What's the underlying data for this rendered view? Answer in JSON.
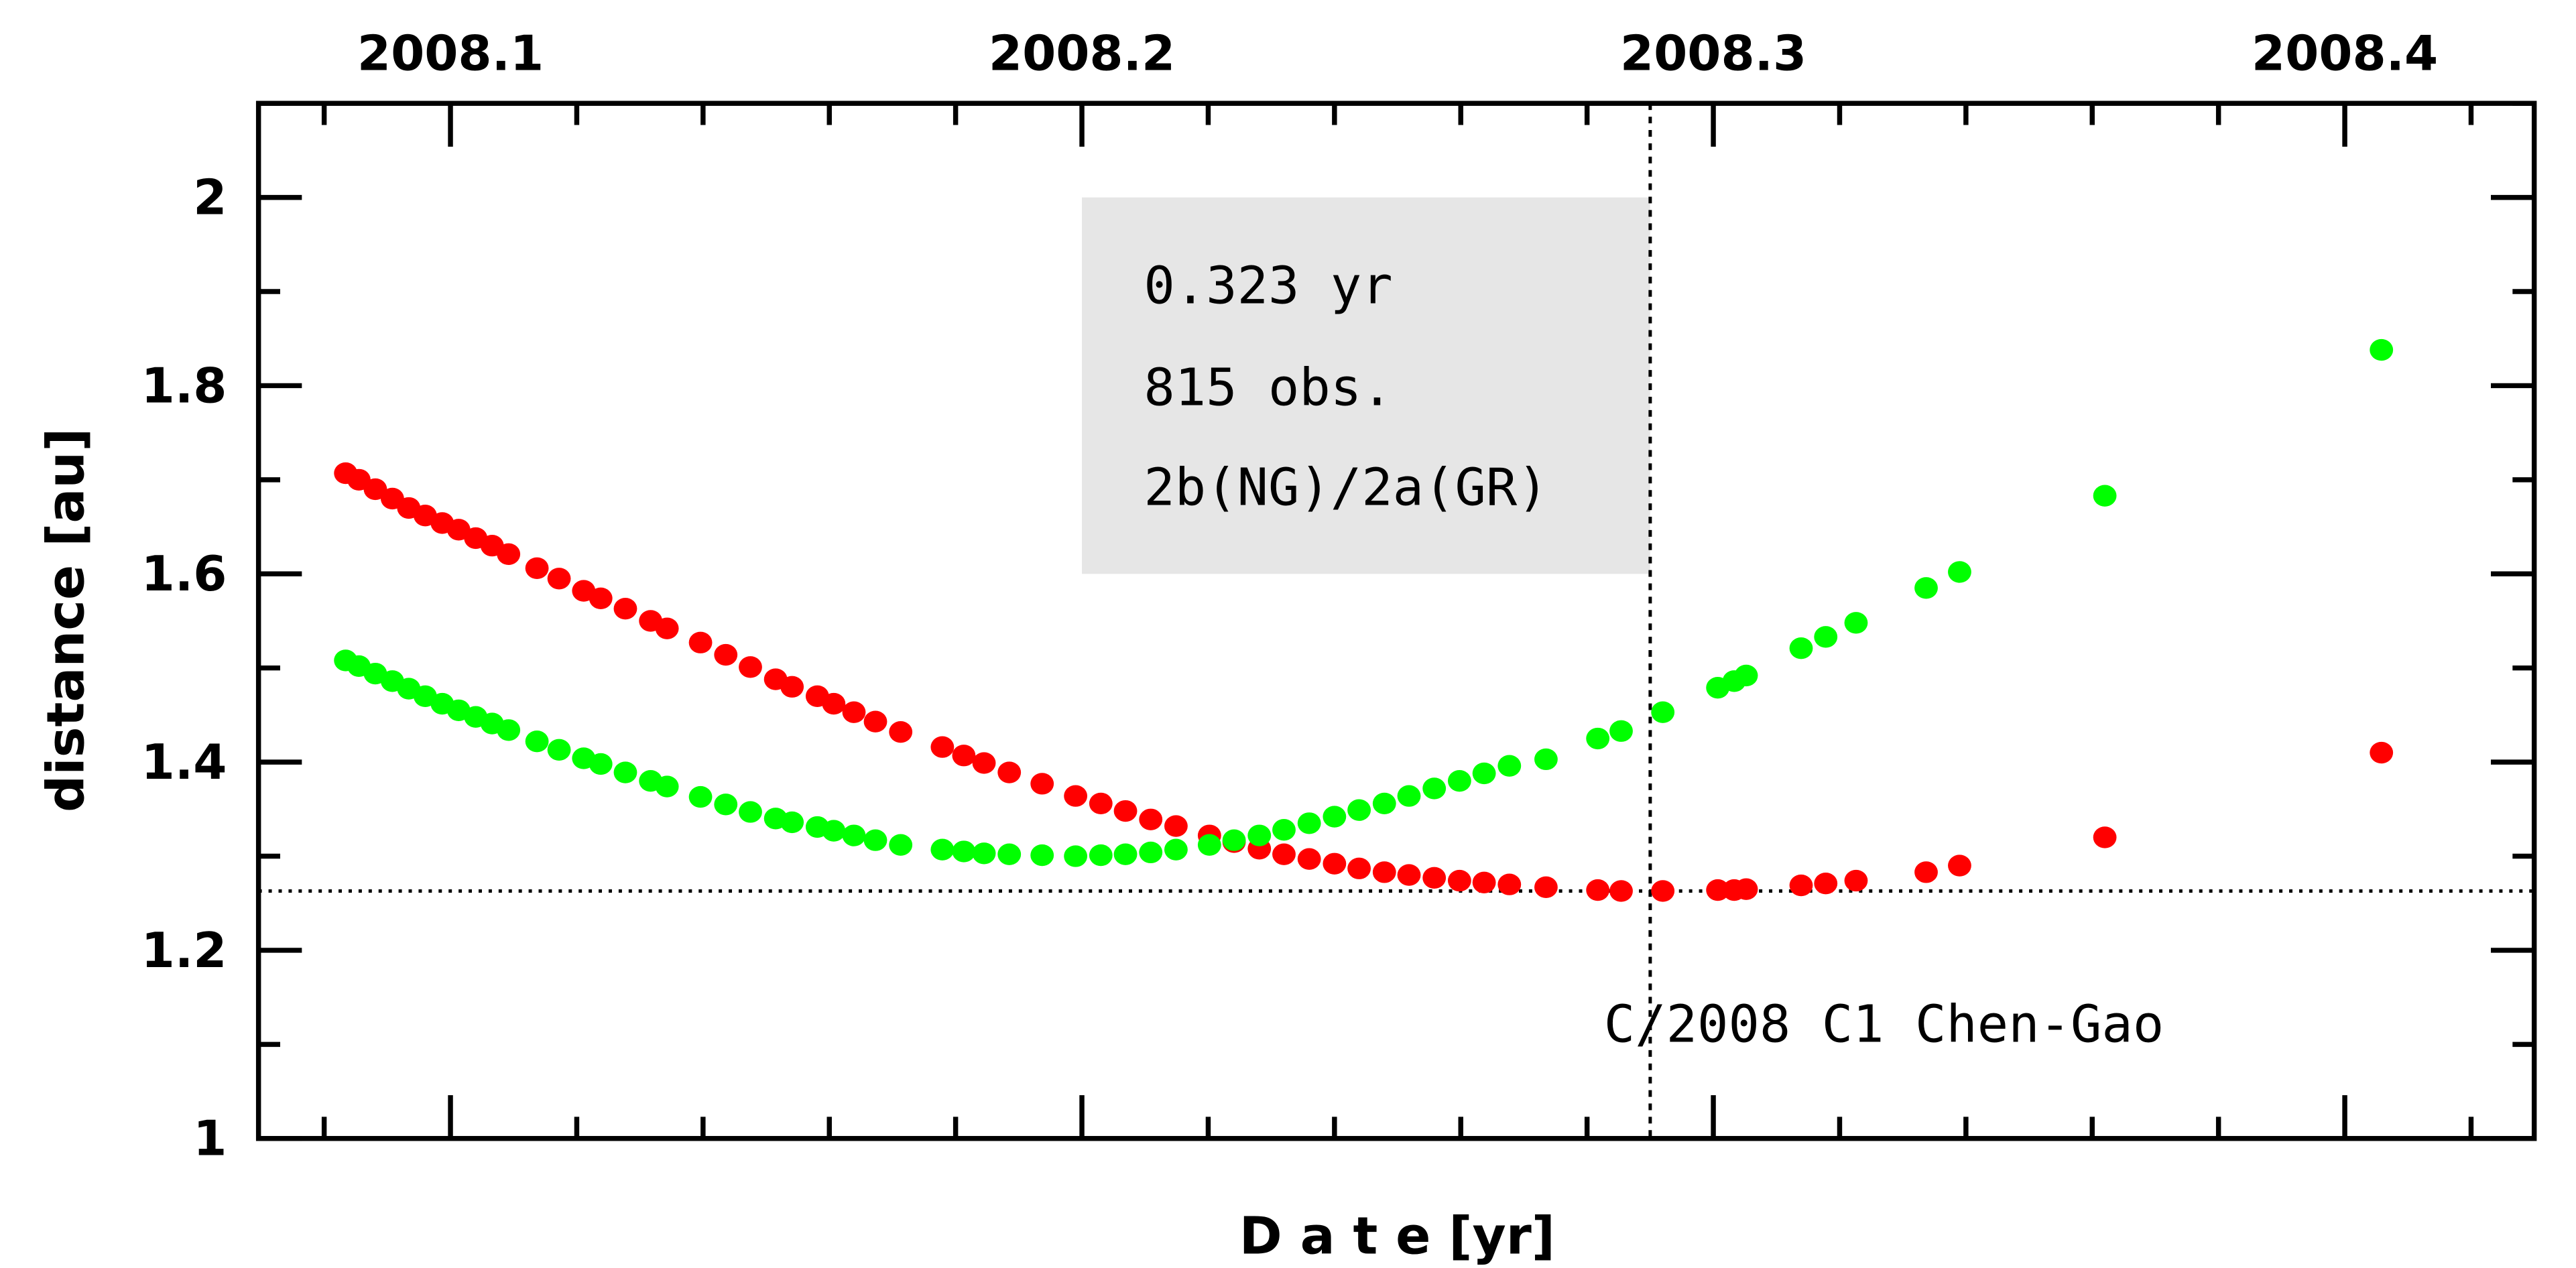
{
  "chart_data": {
    "type": "scatter",
    "title": "",
    "xlabel": "D a t e [yr]",
    "ylabel": "distance [au]",
    "xlim": [
      2008.0696,
      2008.43
    ],
    "ylim": [
      1.0,
      2.1
    ],
    "x_major_ticks": [
      2008.1,
      2008.2,
      2008.3,
      2008.4
    ],
    "x_tick_labels": [
      "2008.1",
      "2008.2",
      "2008.3",
      "2008.4"
    ],
    "y_major_ticks": [
      1,
      1.2,
      1.4,
      1.6,
      1.8,
      2
    ],
    "y_tick_labels": [
      "1",
      "1.2",
      "1.4",
      "1.6",
      "1.8",
      "2"
    ],
    "grid": false,
    "reference_lines": {
      "horizontal_y": 1.263,
      "vertical_x": 2008.29
    },
    "annotation_box": {
      "x_range": [
        2008.2,
        2008.29
      ],
      "y_range": [
        1.6,
        2.0
      ],
      "color": "#e6e6e6",
      "lines": [
        "0.323 yr",
        "815 obs.",
        "2b(NG)/2a(GR)"
      ]
    },
    "object_label": "C/2008 C1 Chen-Gao",
    "x": [
      2008.0834,
      2008.0855,
      2008.0881,
      2008.0908,
      2008.0934,
      2008.096,
      2008.0987,
      2008.1013,
      2008.104,
      2008.1066,
      2008.1092,
      2008.1137,
      2008.1172,
      2008.1211,
      2008.1238,
      2008.1277,
      2008.1317,
      2008.1343,
      2008.1396,
      2008.1436,
      2008.1475,
      2008.1515,
      2008.1541,
      2008.1581,
      2008.1607,
      2008.1639,
      2008.1673,
      2008.1713,
      2008.1779,
      2008.1813,
      2008.1845,
      2008.1885,
      2008.1937,
      2008.199,
      2008.203,
      2008.2069,
      2008.2109,
      2008.2149,
      2008.2202,
      2008.2241,
      2008.2281,
      2008.232,
      2008.236,
      2008.24,
      2008.2439,
      2008.2479,
      2008.2518,
      2008.2558,
      2008.2598,
      2008.2637,
      2008.2677,
      2008.2735,
      2008.2817,
      2008.2854,
      2008.292,
      2008.3007,
      2008.3033,
      2008.3052,
      2008.3139,
      2008.3178,
      2008.3226,
      2008.3337,
      2008.339,
      2008.362,
      2008.4058
    ],
    "series": [
      {
        "name": "red",
        "color": "#ff0000",
        "values": [
          1.707,
          1.7,
          1.69,
          1.68,
          1.67,
          1.662,
          1.654,
          1.647,
          1.638,
          1.63,
          1.621,
          1.606,
          1.595,
          1.582,
          1.574,
          1.563,
          1.55,
          1.542,
          1.527,
          1.514,
          1.501,
          1.488,
          1.48,
          1.47,
          1.462,
          1.453,
          1.443,
          1.432,
          1.416,
          1.407,
          1.399,
          1.389,
          1.377,
          1.364,
          1.356,
          1.348,
          1.339,
          1.332,
          1.322,
          1.315,
          1.308,
          1.302,
          1.297,
          1.292,
          1.287,
          1.283,
          1.28,
          1.277,
          1.274,
          1.272,
          1.27,
          1.267,
          1.264,
          1.263,
          1.263,
          1.264,
          1.264,
          1.265,
          1.269,
          1.271,
          1.274,
          1.283,
          1.29,
          1.32,
          1.41
        ]
      },
      {
        "name": "green",
        "color": "#00ff00",
        "values": [
          1.508,
          1.502,
          1.494,
          1.486,
          1.478,
          1.47,
          1.462,
          1.455,
          1.448,
          1.441,
          1.434,
          1.422,
          1.413,
          1.404,
          1.398,
          1.389,
          1.38,
          1.374,
          1.363,
          1.355,
          1.347,
          1.34,
          1.336,
          1.331,
          1.327,
          1.322,
          1.317,
          1.312,
          1.307,
          1.305,
          1.303,
          1.302,
          1.301,
          1.3,
          1.301,
          1.302,
          1.304,
          1.307,
          1.312,
          1.317,
          1.322,
          1.328,
          1.335,
          1.342,
          1.349,
          1.356,
          1.364,
          1.372,
          1.38,
          1.388,
          1.396,
          1.403,
          1.425,
          1.433,
          1.453,
          1.479,
          1.486,
          1.492,
          1.521,
          1.533,
          1.548,
          1.585,
          1.602,
          1.683,
          1.838
        ]
      }
    ]
  }
}
